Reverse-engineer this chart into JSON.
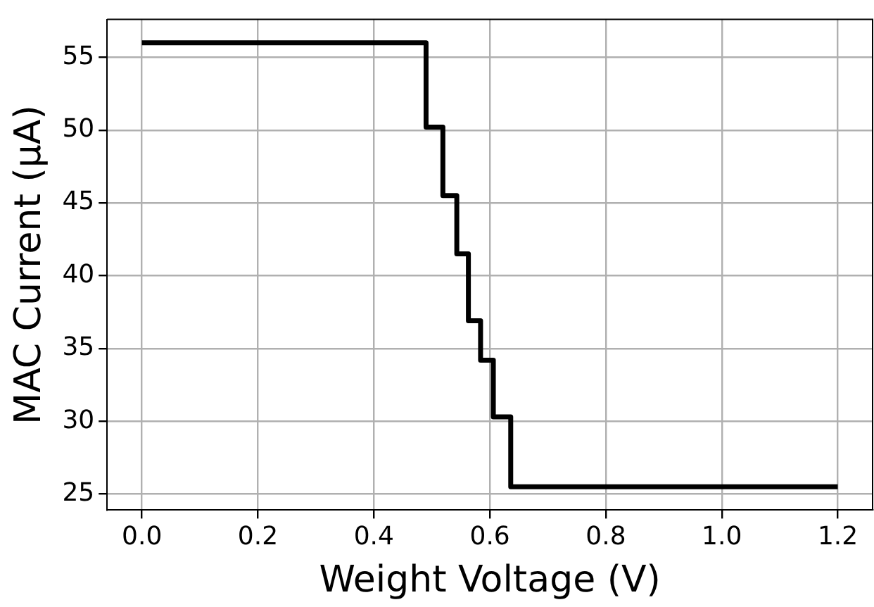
{
  "chart_data": {
    "type": "step",
    "xlabel": "Weight Voltage (V)",
    "ylabel": "MAC Current (μA)",
    "x": [
      0,
      0.49,
      0.519,
      0.543,
      0.563,
      0.584,
      0.606,
      0.636,
      1.2
    ],
    "series": [
      {
        "color": "#000000",
        "values": [
          56,
          50.2,
          45.5,
          41.5,
          36.9,
          34.2,
          30.3,
          25.5,
          25.5
        ]
      }
    ],
    "xlim": [
      -0.06,
      1.26
    ],
    "xticks": [
      {
        "value": 0,
        "label": "0.0"
      },
      0.2,
      0.4,
      0.6,
      0.8,
      {
        "value": 1,
        "label": "1.0"
      },
      1.2
    ],
    "ylim": [
      23.9,
      57.6
    ],
    "yticks": [
      25,
      30,
      35,
      40,
      45,
      50,
      55
    ],
    "grid": true,
    "legend": false,
    "marker": "none",
    "line_style": "solid"
  }
}
